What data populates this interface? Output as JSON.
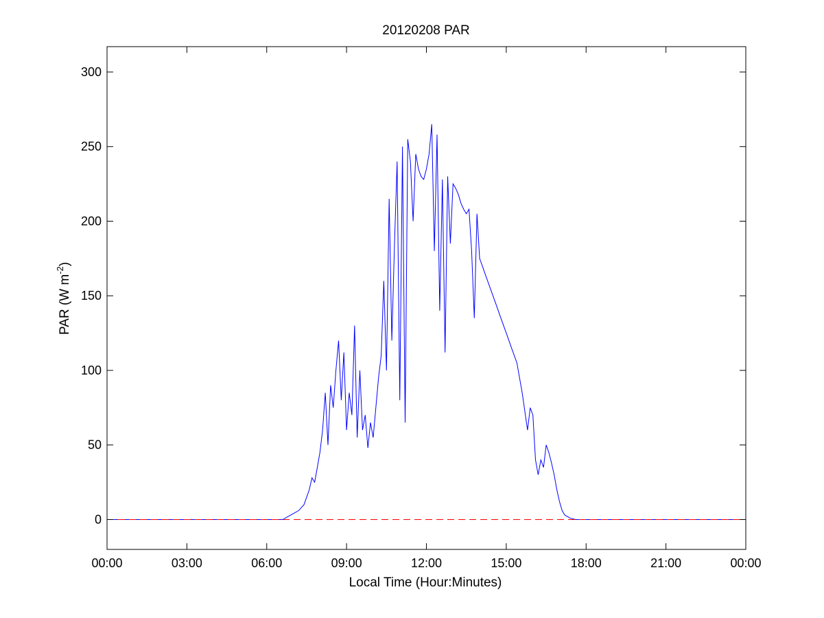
{
  "chart_data": {
    "type": "line",
    "title": "20120208 PAR",
    "xlabel": "Local Time (Hour:Minutes)",
    "ylabel": {
      "main": "PAR (W m",
      "sup": "-2",
      "close": ")"
    },
    "xlim": [
      0,
      24
    ],
    "ylim": [
      -20,
      317
    ],
    "xticks": [
      0,
      3,
      6,
      9,
      12,
      15,
      18,
      21,
      24
    ],
    "xtick_labels": [
      "00:00",
      "03:00",
      "06:00",
      "09:00",
      "12:00",
      "15:00",
      "18:00",
      "21:00",
      "00:00"
    ],
    "yticks": [
      0,
      50,
      100,
      150,
      200,
      250,
      300
    ],
    "ytick_labels": [
      "0",
      "50",
      "100",
      "150",
      "200",
      "250",
      "300"
    ],
    "grid": false,
    "series": [
      {
        "color": "#0000ff",
        "style": "solid",
        "x": [
          0,
          6.6,
          6.8,
          7.0,
          7.2,
          7.4,
          7.5,
          7.6,
          7.7,
          7.8,
          7.9,
          8.0,
          8.1,
          8.2,
          8.3,
          8.4,
          8.5,
          8.6,
          8.7,
          8.8,
          8.9,
          9.0,
          9.1,
          9.2,
          9.3,
          9.4,
          9.5,
          9.6,
          9.7,
          9.8,
          9.9,
          10.0,
          10.1,
          10.2,
          10.3,
          10.4,
          10.5,
          10.6,
          10.7,
          10.8,
          10.9,
          11.0,
          11.1,
          11.2,
          11.3,
          11.4,
          11.5,
          11.6,
          11.7,
          11.8,
          11.9,
          12.0,
          12.1,
          12.2,
          12.3,
          12.4,
          12.5,
          12.6,
          12.7,
          12.8,
          12.9,
          13.0,
          13.1,
          13.2,
          13.3,
          13.4,
          13.5,
          13.6,
          13.7,
          13.8,
          13.9,
          14.0,
          14.1,
          14.2,
          14.4,
          14.6,
          14.8,
          15.0,
          15.2,
          15.4,
          15.6,
          15.8,
          15.9,
          16.0,
          16.1,
          16.2,
          16.3,
          16.4,
          16.5,
          16.6,
          16.7,
          16.8,
          16.9,
          17.0,
          17.1,
          17.2,
          17.4,
          17.6,
          17.8,
          18.0,
          24
        ],
        "y": [
          0,
          0,
          2,
          4,
          6,
          10,
          15,
          20,
          28,
          25,
          35,
          45,
          60,
          85,
          50,
          90,
          75,
          100,
          120,
          80,
          112,
          60,
          85,
          70,
          130,
          55,
          100,
          60,
          70,
          48,
          65,
          55,
          75,
          95,
          110,
          160,
          100,
          215,
          120,
          185,
          240,
          80,
          250,
          65,
          255,
          240,
          200,
          245,
          235,
          230,
          228,
          235,
          245,
          265,
          180,
          258,
          140,
          228,
          112,
          230,
          185,
          225,
          222,
          218,
          212,
          208,
          205,
          208,
          180,
          135,
          205,
          175,
          170,
          165,
          155,
          145,
          135,
          125,
          115,
          105,
          85,
          60,
          75,
          70,
          40,
          30,
          40,
          35,
          50,
          45,
          38,
          30,
          20,
          12,
          6,
          3,
          1,
          0,
          0,
          0,
          0
        ]
      },
      {
        "color": "#ff0000",
        "style": "dashed",
        "x": [
          0,
          24
        ],
        "y": [
          0,
          0
        ]
      }
    ]
  }
}
